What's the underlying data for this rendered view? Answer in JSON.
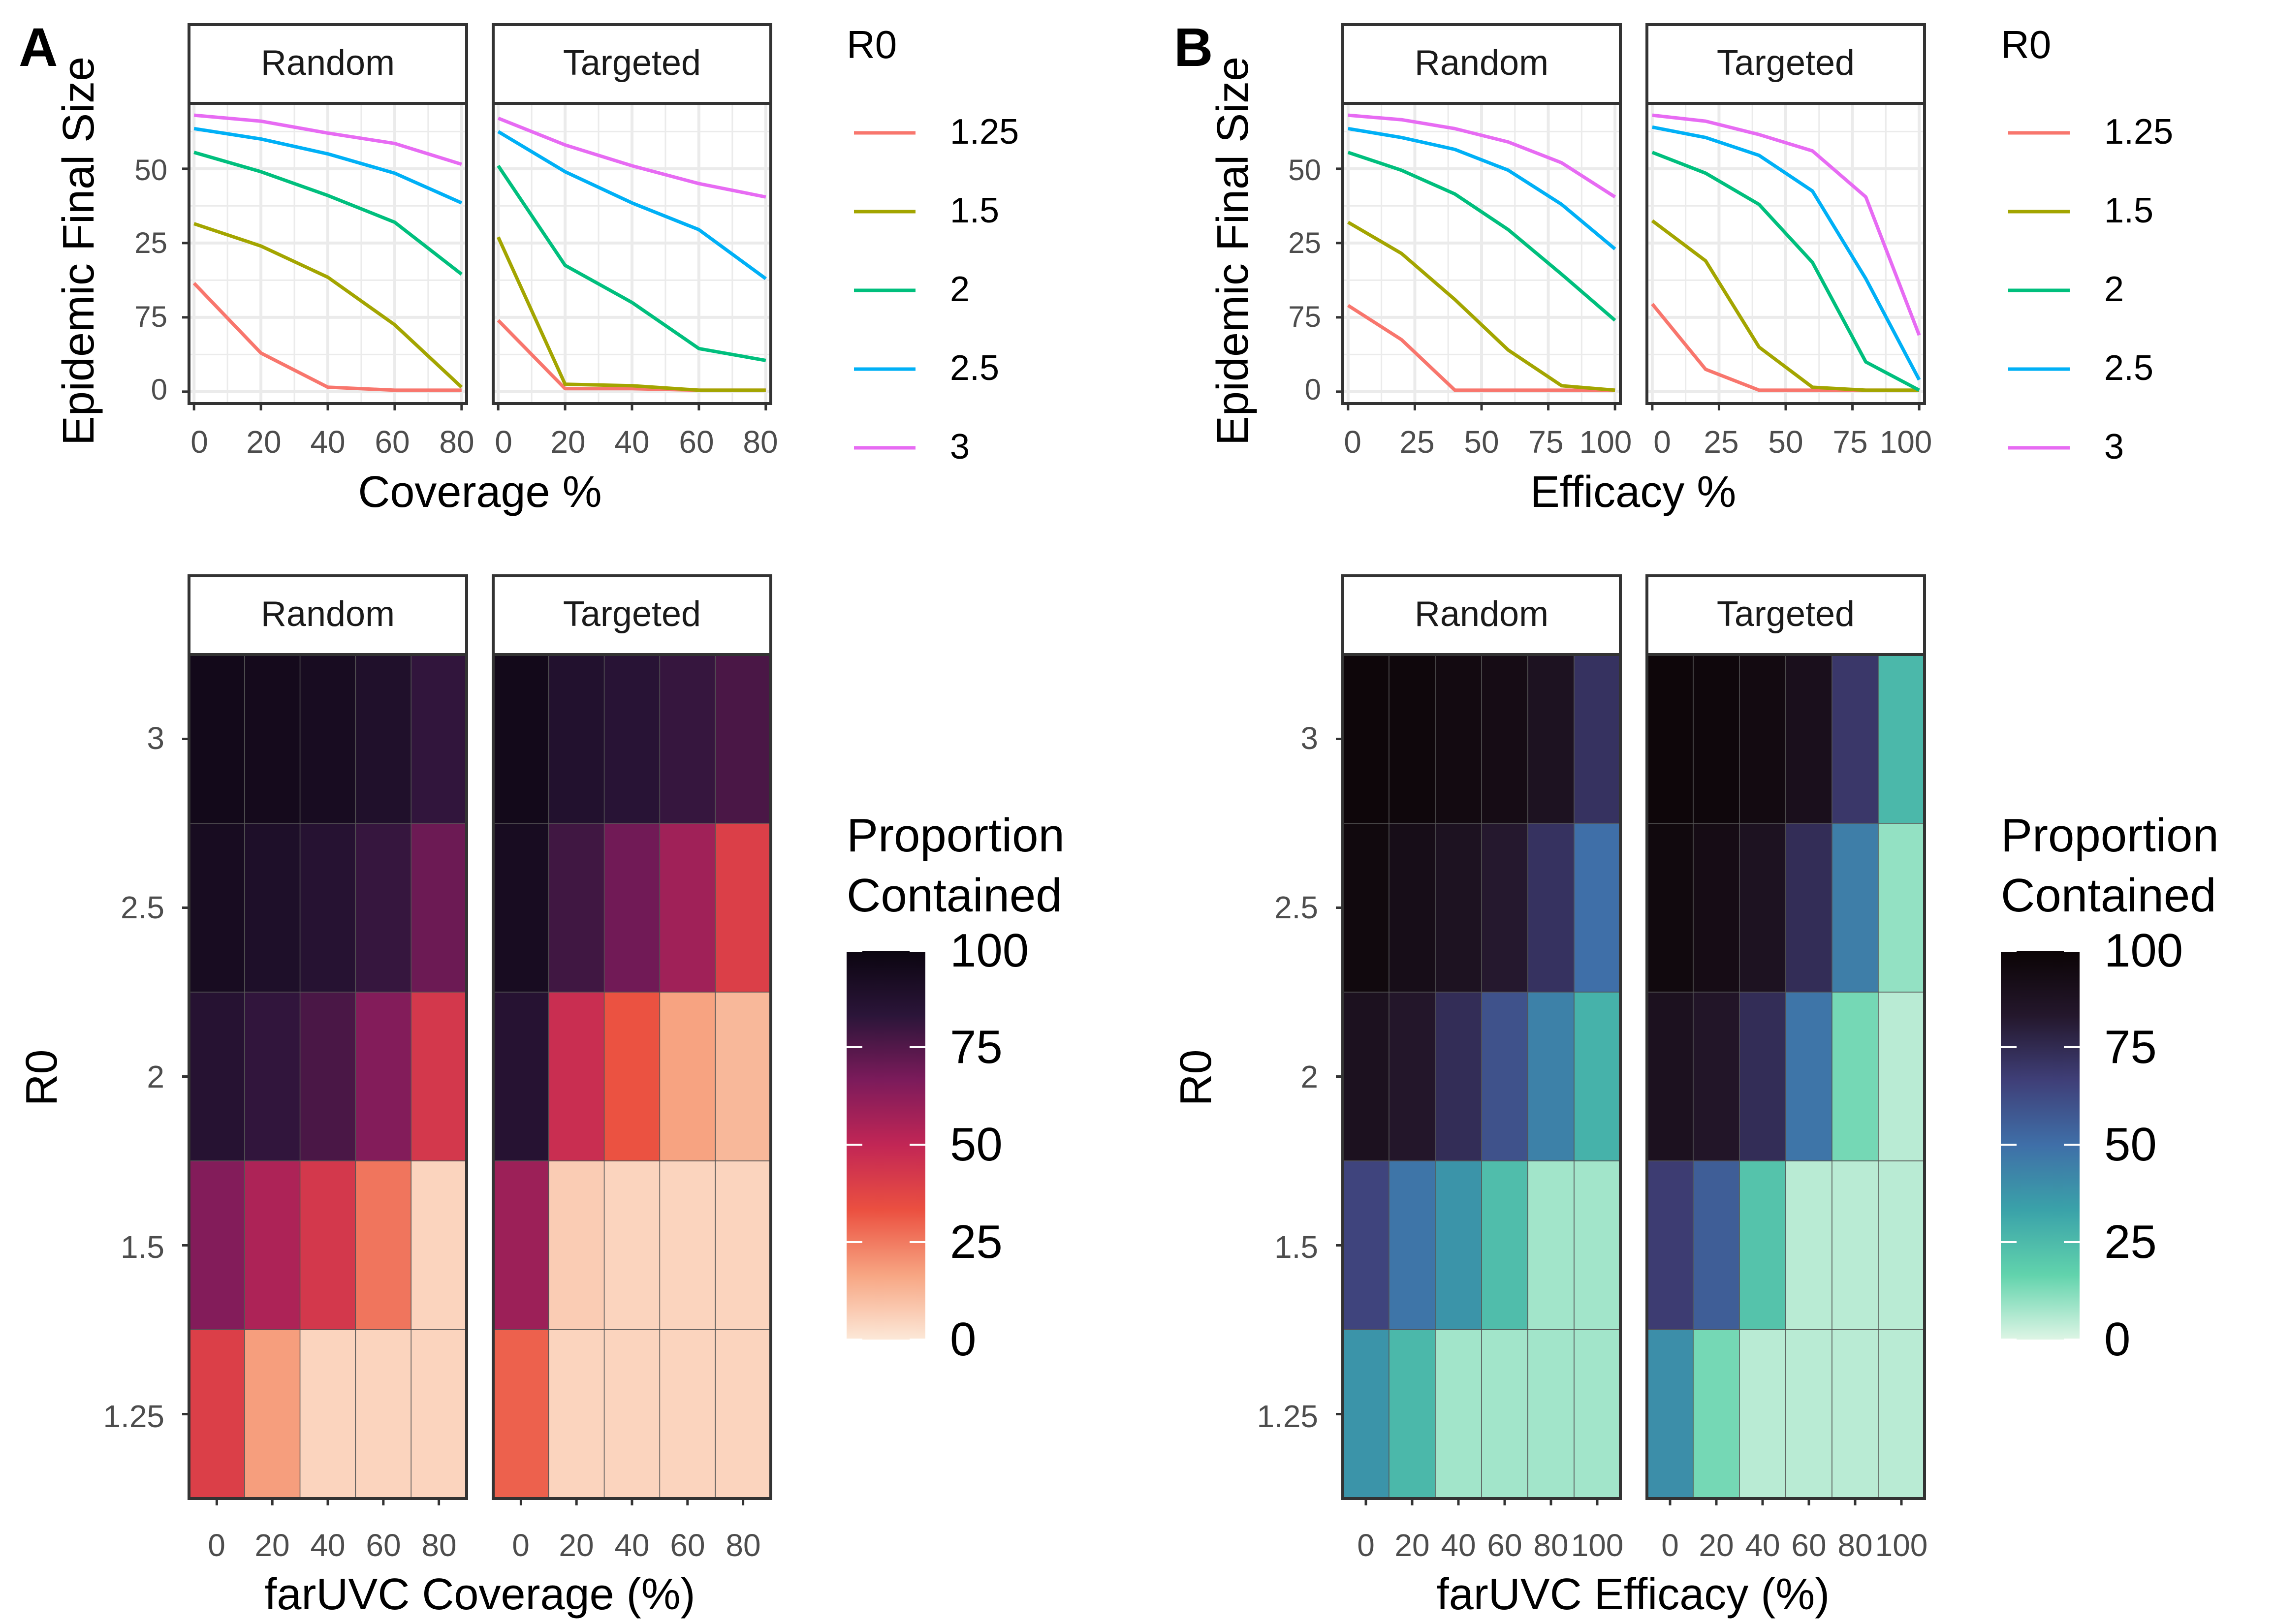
{
  "colors": {
    "r0_palette": [
      "#F8766D",
      "#A3A500",
      "#00BF7D",
      "#00B0F6",
      "#E76BF3"
    ],
    "magma_stops": [
      "#FCE8D8",
      "#F7A582",
      "#EB5040",
      "#C22655",
      "#7C1B5B",
      "#2B1539",
      "#0B0510"
    ],
    "mako_stops": [
      "#DEF5E5",
      "#61D3AC",
      "#3AA2A9",
      "#3F6FA8",
      "#3F3F78",
      "#24172C",
      "#0B0405"
    ],
    "strip_fill": "#FFFFFF",
    "grid": "#EBEBEB"
  },
  "panels": {
    "A": {
      "label": "A",
      "line_chart": {
        "ylabel": "Epidemic Final Size",
        "xlabel": "Coverage %",
        "legend_title": "R0",
        "legend_entries": [
          "1.25",
          "1.5",
          "2",
          "2.5",
          "3"
        ],
        "facets": [
          "Random",
          "Targeted"
        ],
        "x": [
          0,
          20,
          40,
          60,
          80
        ],
        "xticks": [
          "0",
          "20",
          "40",
          "60",
          "80"
        ],
        "yticks": [
          "0",
          "25",
          "50",
          "75"
        ]
      },
      "heatmap": {
        "ylabel": "R0",
        "xlabel": "farUVC Coverage (%)",
        "legend_title": [
          "Proportion",
          "Contained"
        ],
        "legend_ticks": [
          "0",
          "25",
          "50",
          "75",
          "100"
        ],
        "facets": [
          "Random",
          "Targeted"
        ],
        "rows": [
          "3",
          "2.5",
          "2",
          "1.5",
          "1.25"
        ],
        "xticks": [
          "0",
          "20",
          "40",
          "60",
          "80"
        ]
      }
    },
    "B": {
      "label": "B",
      "line_chart": {
        "ylabel": "Epidemic Final Size",
        "xlabel": "Efficacy %",
        "legend_title": "R0",
        "legend_entries": [
          "1.25",
          "1.5",
          "2",
          "2.5",
          "3"
        ],
        "facets": [
          "Random",
          "Targeted"
        ],
        "x": [
          0,
          20,
          40,
          60,
          80,
          100
        ],
        "xticks": [
          "0",
          "25",
          "50",
          "75",
          "100"
        ],
        "yticks": [
          "0",
          "25",
          "50",
          "75"
        ]
      },
      "heatmap": {
        "ylabel": "R0",
        "xlabel": "farUVC Efficacy (%)",
        "legend_title": [
          "Proportion",
          "Contained"
        ],
        "legend_ticks": [
          "0",
          "25",
          "50",
          "75",
          "100"
        ],
        "facets": [
          "Random",
          "Targeted"
        ],
        "rows": [
          "3",
          "2.5",
          "2",
          "1.5",
          "1.25"
        ],
        "xticks": [
          "0",
          "20",
          "40",
          "60",
          "80",
          "100"
        ]
      }
    }
  },
  "chart_data": [
    {
      "id": "A-line",
      "type": "line",
      "title": "",
      "xlabel": "Coverage %",
      "ylabel": "Epidemic Final Size",
      "xlim": [
        -1.5,
        81.5
      ],
      "ylim": [
        -4,
        97
      ],
      "x": [
        0,
        20,
        40,
        60,
        80
      ],
      "facets": [
        {
          "name": "Random",
          "series": [
            {
              "name": "1.25",
              "values": [
                36.5,
                13,
                1.5,
                0.5,
                0.5
              ]
            },
            {
              "name": "1.5",
              "values": [
                56.5,
                49,
                38.5,
                22.5,
                1.5
              ]
            },
            {
              "name": "2",
              "values": [
                80.5,
                74,
                66,
                57,
                39.5
              ]
            },
            {
              "name": "2.5",
              "values": [
                88.5,
                85,
                80,
                73.5,
                63.5
              ]
            },
            {
              "name": "3",
              "values": [
                93,
                91,
                87,
                83.5,
                76.5
              ]
            }
          ]
        },
        {
          "name": "Targeted",
          "series": [
            {
              "name": "1.25",
              "values": [
                24,
                1,
                1,
                0.5,
                0.5
              ]
            },
            {
              "name": "1.5",
              "values": [
                52,
                2.5,
                2,
                0.5,
                0.5
              ]
            },
            {
              "name": "2",
              "values": [
                76,
                42.5,
                30,
                14.5,
                10.5
              ]
            },
            {
              "name": "2.5",
              "values": [
                87.5,
                74,
                63.5,
                54.5,
                38
              ]
            },
            {
              "name": "3",
              "values": [
                92,
                83,
                76,
                70,
                65.5
              ]
            }
          ]
        }
      ]
    },
    {
      "id": "B-line",
      "type": "line",
      "title": "",
      "xlabel": "Efficacy %",
      "ylabel": "Epidemic Final Size",
      "xlim": [
        -2,
        102
      ],
      "ylim": [
        -4,
        97
      ],
      "x": [
        0,
        20,
        40,
        60,
        80,
        100
      ],
      "facets": [
        {
          "name": "Random",
          "series": [
            {
              "name": "1.25",
              "values": [
                29,
                17.5,
                0.5,
                0.5,
                0.5,
                0.5
              ]
            },
            {
              "name": "1.5",
              "values": [
                57,
                46.5,
                31,
                14,
                2,
                0.5
              ]
            },
            {
              "name": "2",
              "values": [
                80.5,
                74.5,
                66.5,
                54.5,
                39.5,
                24
              ]
            },
            {
              "name": "2.5",
              "values": [
                88.5,
                85.5,
                81.5,
                74.5,
                63,
                48
              ]
            },
            {
              "name": "3",
              "values": [
                93,
                91.5,
                88.5,
                84,
                77,
                65.5
              ]
            }
          ]
        },
        {
          "name": "Targeted",
          "series": [
            {
              "name": "1.25",
              "values": [
                29.5,
                7.5,
                0.5,
                0.5,
                0.5,
                0.5
              ]
            },
            {
              "name": "1.5",
              "values": [
                57.5,
                44,
                15,
                1.5,
                0.5,
                0.5
              ]
            },
            {
              "name": "2",
              "values": [
                80.5,
                73.5,
                63,
                43.5,
                10,
                0.5
              ]
            },
            {
              "name": "2.5",
              "values": [
                89,
                85.5,
                79.5,
                67.5,
                38,
                4
              ]
            },
            {
              "name": "3",
              "values": [
                93,
                91,
                86.5,
                81,
                65.5,
                19
              ]
            }
          ]
        }
      ]
    },
    {
      "id": "A-heatmap",
      "type": "heatmap",
      "title": "",
      "xlabel": "farUVC Coverage (%)",
      "ylabel": "R0",
      "value_label": "Proportion Contained",
      "value_range": [
        0,
        100
      ],
      "x": [
        "0",
        "20",
        "40",
        "60",
        "80"
      ],
      "y": [
        "3",
        "2.5",
        "2",
        "1.5",
        "1.25"
      ],
      "facets": [
        {
          "name": "Random",
          "values": [
            [
              96,
              95,
              93,
              89,
              82
            ],
            [
              93,
              90,
              86,
              81,
              70
            ],
            [
              86,
              82,
              77,
              65,
              43
            ],
            [
              65,
              55,
              43,
              26,
              5
            ],
            [
              40,
              18,
              5,
              5,
              5
            ]
          ]
        },
        {
          "name": "Targeted",
          "values": [
            [
              96,
              88,
              85,
              81,
              77
            ],
            [
              93,
              79,
              69,
              58,
              40
            ],
            [
              86,
              47,
              33,
              17,
              12
            ],
            [
              59,
              7,
              5,
              5,
              5
            ],
            [
              30,
              5,
              5,
              5,
              5
            ]
          ]
        }
      ]
    },
    {
      "id": "B-heatmap",
      "type": "heatmap",
      "title": "",
      "xlabel": "farUVC Efficacy (%)",
      "ylabel": "R0",
      "value_label": "Proportion Contained",
      "value_range": [
        0,
        100
      ],
      "x": [
        "0",
        "20",
        "40",
        "60",
        "80",
        "100"
      ],
      "y": [
        "3",
        "2.5",
        "2",
        "1.5",
        "1.25"
      ],
      "facets": [
        {
          "name": "Random",
          "values": [
            [
              98,
              97,
              95,
              93,
              88,
              72
            ],
            [
              96,
              92,
              88,
              83,
              72,
              50
            ],
            [
              89,
              84,
              74,
              60,
              44,
              28
            ],
            [
              65,
              48,
              38,
              24,
              8,
              8
            ],
            [
              38,
              26,
              8,
              8,
              8,
              8
            ]
          ]
        },
        {
          "name": "Targeted",
          "values": [
            [
              98,
              97,
              95,
              90,
              70,
              26
            ],
            [
              96,
              93,
              88,
              74,
              45,
              10
            ],
            [
              89,
              85,
              74,
              48,
              14,
              5
            ],
            [
              68,
              56,
              22,
              5,
              5,
              5
            ],
            [
              40,
              14,
              5,
              5,
              5,
              5
            ]
          ]
        }
      ]
    }
  ]
}
